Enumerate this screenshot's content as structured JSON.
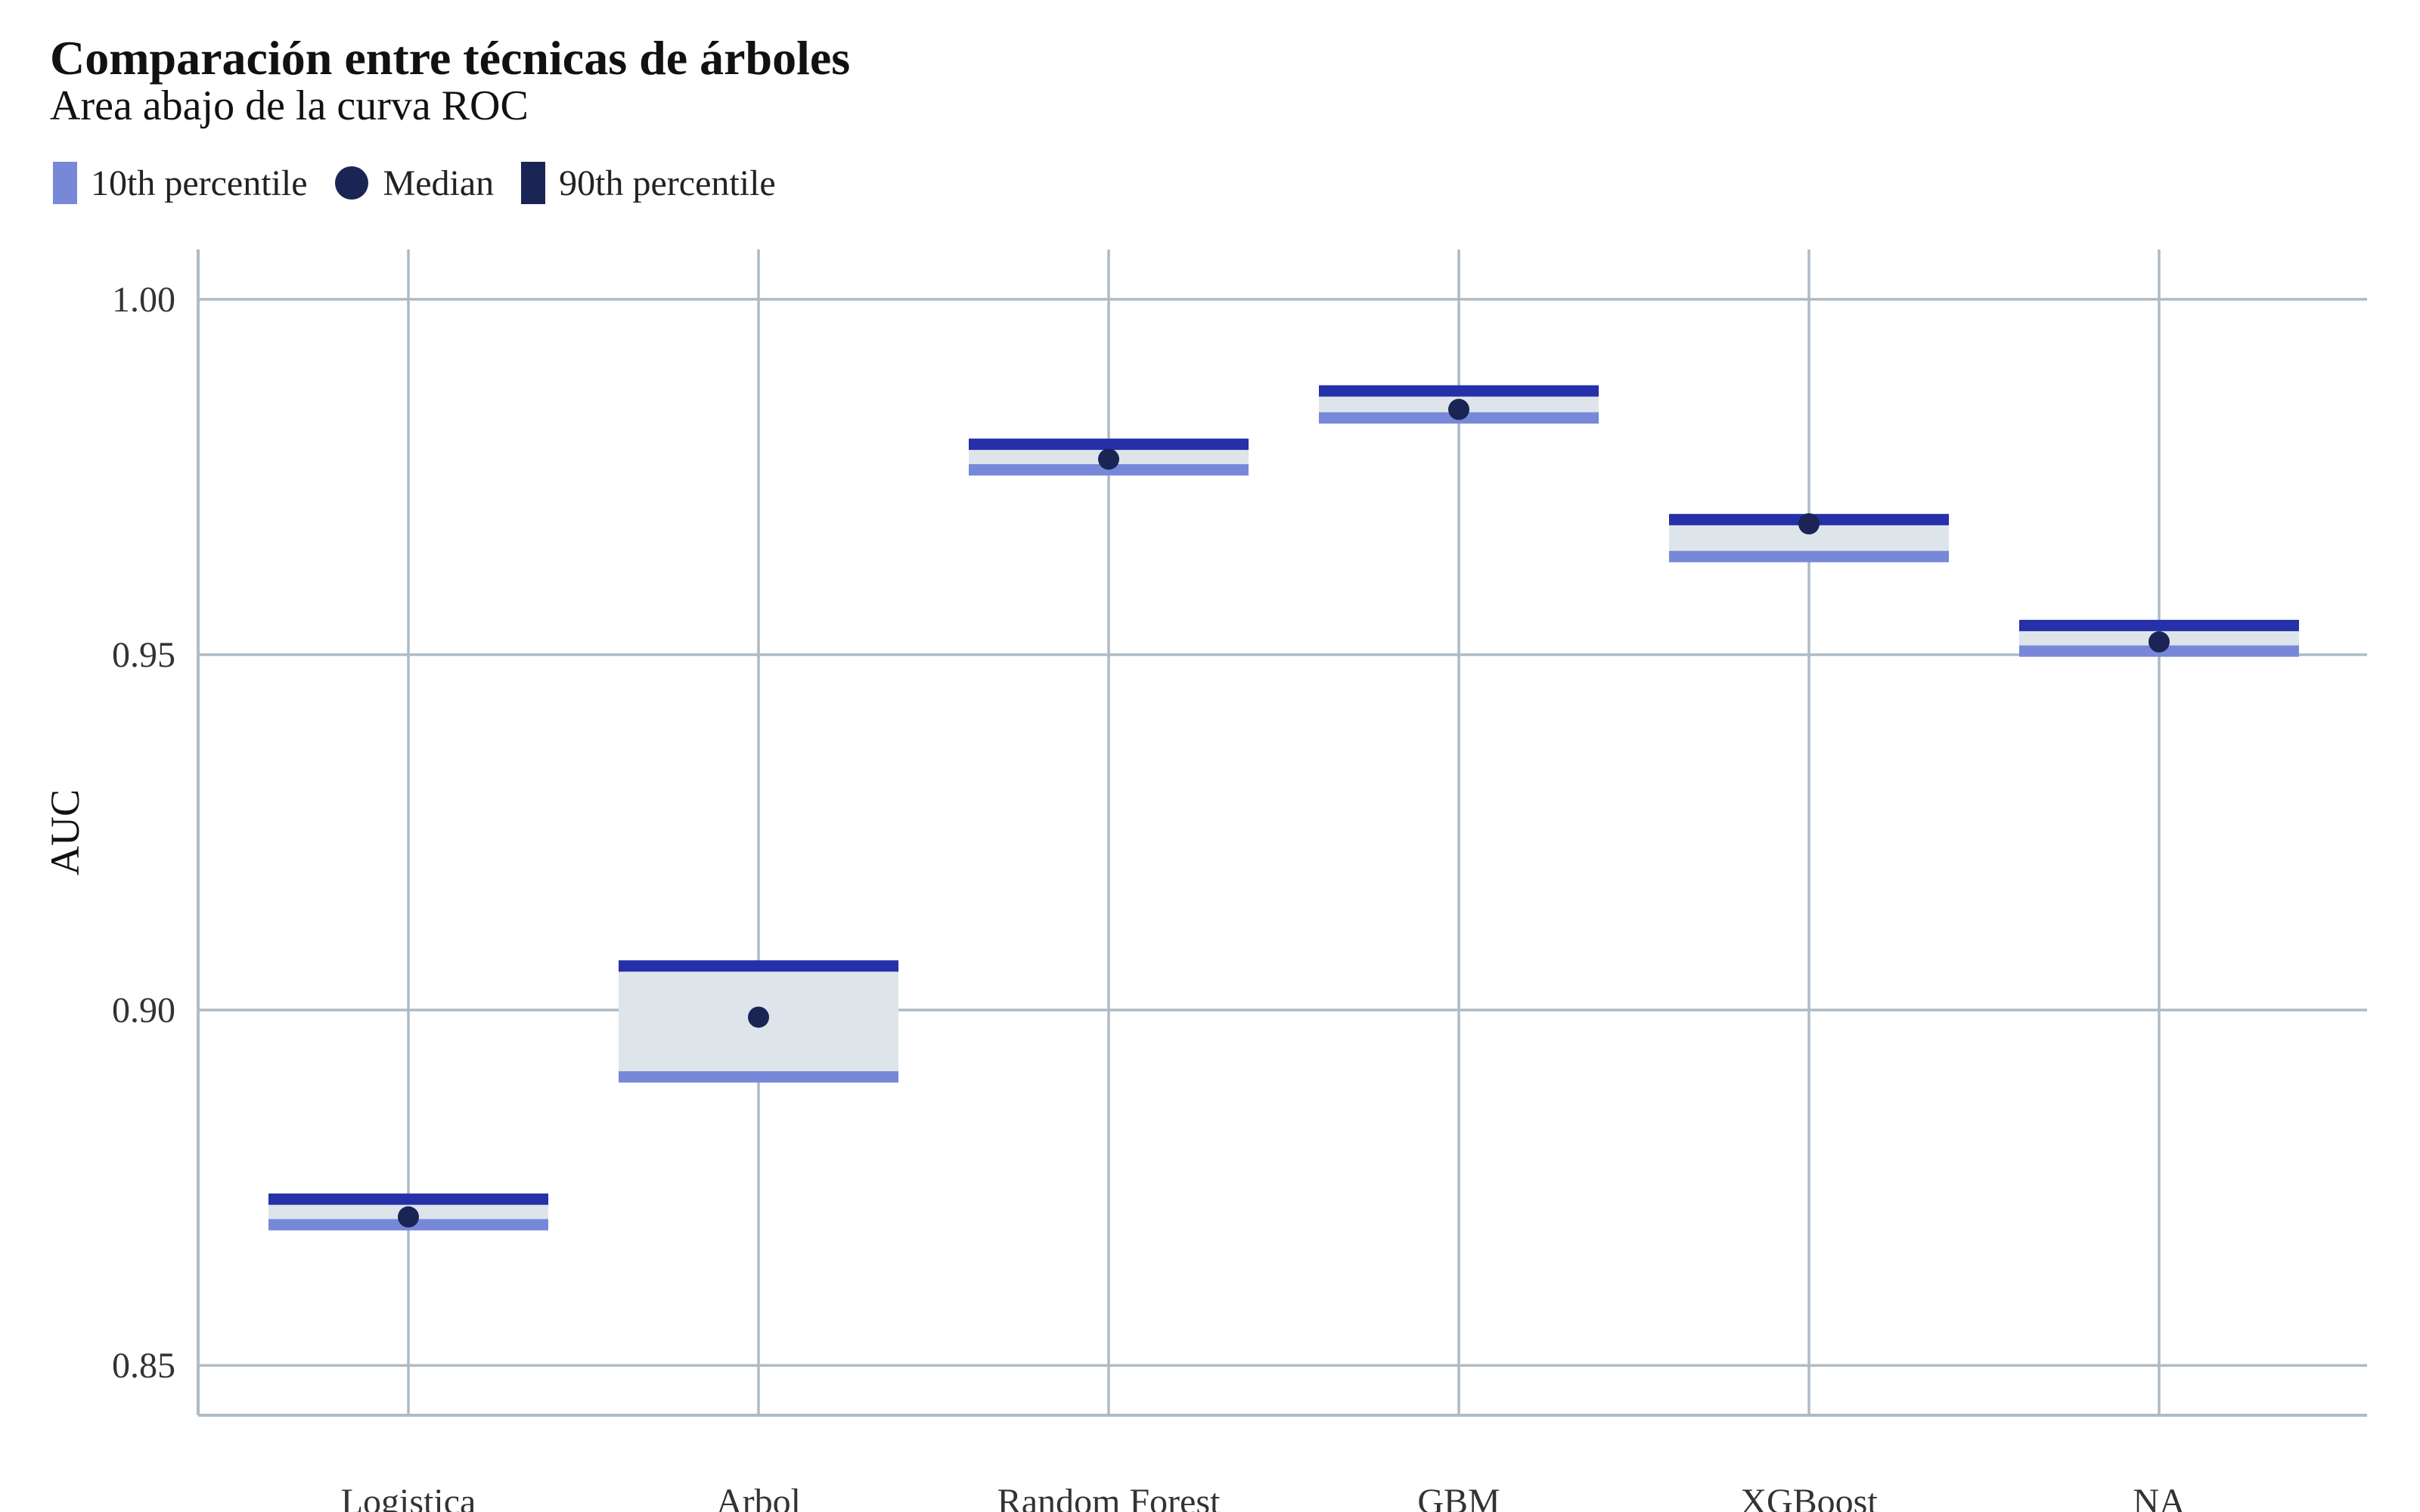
{
  "colors": {
    "grid": "#aebbc5",
    "band_fill": "#dde5eb",
    "p10": "#7888d8",
    "p90": "#2630a8",
    "median": "#1a2455"
  },
  "legend": {
    "items": [
      {
        "label": "10th percentile",
        "kind": "bar",
        "color": "#7888d8"
      },
      {
        "label": "Median",
        "kind": "dot",
        "color": "#1a2455"
      },
      {
        "label": "90th percentile",
        "kind": "bar",
        "color": "#1a2455"
      }
    ]
  },
  "chart_data": {
    "type": "range",
    "title": "Comparación entre técnicas de árboles",
    "subtitle": "Area abajo de la curva ROC",
    "xlabel": "",
    "ylabel": "AUC",
    "ylim": [
      0.843,
      1.007
    ],
    "yticks": [
      0.85,
      0.9,
      0.95,
      1.0
    ],
    "ytick_labels": [
      "0.85",
      "0.90",
      "0.95",
      "1.00"
    ],
    "categories": [
      "Logistica",
      "Arbol",
      "Random Forest",
      "GBM",
      "XGBoost",
      "NA"
    ],
    "series": [
      {
        "name": "10th percentile",
        "values": [
          0.8698,
          0.8906,
          0.976,
          0.9833,
          0.9638,
          0.9505
        ]
      },
      {
        "name": "Median",
        "values": [
          0.8709,
          0.899,
          0.9775,
          0.9845,
          0.9684,
          0.9518
        ]
      },
      {
        "name": "90th percentile",
        "values": [
          0.8734,
          0.9062,
          0.9796,
          0.9871,
          0.969,
          0.9541
        ]
      }
    ],
    "grid": true,
    "legend_position": "top-left"
  }
}
